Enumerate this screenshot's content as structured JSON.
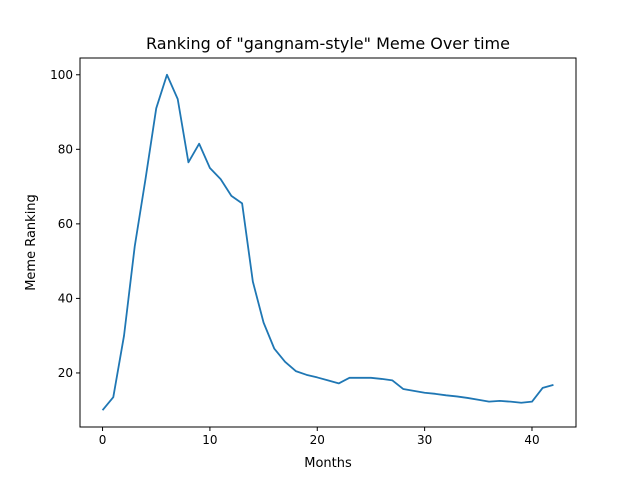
{
  "chart_data": {
    "type": "line",
    "title": "Ranking of \"gangnam-style\" Meme Over time",
    "xlabel": "Months",
    "ylabel": "Meme Ranking",
    "xlim": [
      -2.1,
      44.1
    ],
    "ylim": [
      5.5,
      104.5
    ],
    "xticks": [
      0,
      10,
      20,
      30,
      40
    ],
    "yticks": [
      20,
      40,
      60,
      80,
      100
    ],
    "grid": false,
    "line_color": "#1f77b4",
    "x": [
      0,
      1,
      2,
      3,
      4,
      5,
      6,
      7,
      8,
      9,
      10,
      11,
      12,
      13,
      14,
      15,
      16,
      17,
      18,
      19,
      20,
      21,
      22,
      23,
      24,
      25,
      26,
      27,
      28,
      29,
      30,
      31,
      32,
      33,
      34,
      35,
      36,
      37,
      38,
      39,
      40,
      41,
      42
    ],
    "y": [
      10,
      13.5,
      30,
      54,
      72,
      91,
      100,
      93.5,
      76.5,
      81.5,
      75,
      72,
      67.5,
      65.5,
      44.5,
      33.5,
      26.5,
      23,
      20.5,
      19.5,
      18.8,
      18,
      17.2,
      18.7,
      18.7,
      18.7,
      18.4,
      18,
      15.7,
      15.2,
      14.7,
      14.4,
      14,
      13.7,
      13.3,
      12.8,
      12.3,
      12.5,
      12.3,
      12,
      12.3,
      16,
      16.8
    ]
  }
}
